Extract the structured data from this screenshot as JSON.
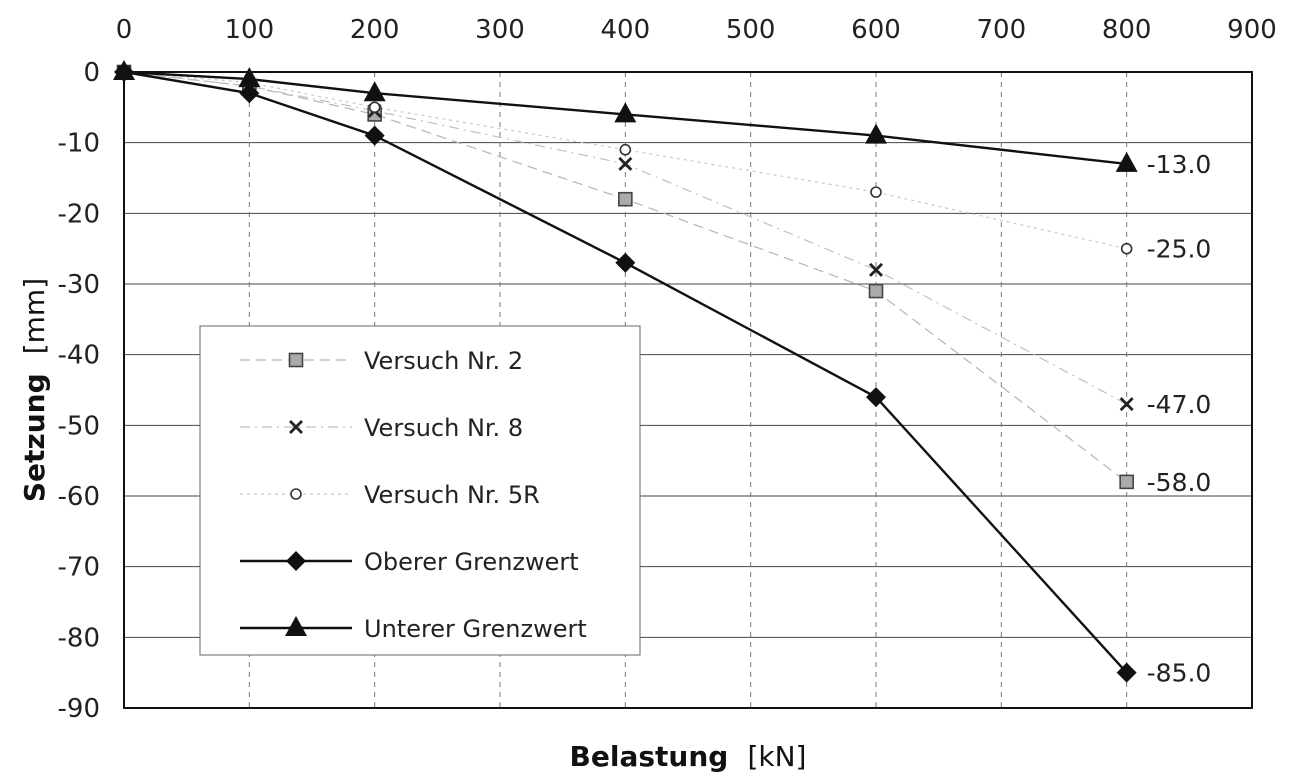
{
  "chart_data": {
    "type": "line",
    "xlabel": "Belastung",
    "xunit": "[kN]",
    "ylabel": "Setzung",
    "yunit": "[mm]",
    "xlim": [
      0,
      900
    ],
    "ylim": [
      -90,
      0
    ],
    "xticks": [
      0,
      100,
      200,
      300,
      400,
      500,
      600,
      700,
      800,
      900
    ],
    "yticks": [
      0,
      -10,
      -20,
      -30,
      -40,
      -50,
      -60,
      -70,
      -80,
      -90
    ],
    "x_axis_position": "top",
    "grid": true,
    "legend_position": "lower-left",
    "series": [
      {
        "name": "Versuch Nr. 2",
        "marker": "square",
        "line": "dashed-light",
        "x": [
          0,
          100,
          200,
          400,
          600,
          800
        ],
        "y": [
          0,
          -2,
          -6,
          -18,
          -31,
          -58
        ],
        "end_label": "-58.0"
      },
      {
        "name": "Versuch Nr. 8",
        "marker": "x",
        "line": "dashdot-light",
        "x": [
          0,
          100,
          200,
          400,
          600,
          800
        ],
        "y": [
          0,
          -2,
          -5.5,
          -13,
          -28,
          -47
        ],
        "end_label": "-47.0"
      },
      {
        "name": "Versuch Nr. 5R",
        "marker": "circle",
        "line": "dotted-light",
        "x": [
          0,
          100,
          200,
          400,
          600,
          800
        ],
        "y": [
          0,
          -1.5,
          -5,
          -11,
          -17,
          -25
        ],
        "end_label": "-25.0"
      },
      {
        "name": "Oberer Grenzwert",
        "marker": "diamond",
        "line": "solid",
        "x": [
          0,
          100,
          200,
          400,
          600,
          800
        ],
        "y": [
          0,
          -3,
          -9,
          -27,
          -46,
          -85
        ],
        "end_label": "-85.0"
      },
      {
        "name": "Unterer Grenzwert",
        "marker": "triangle",
        "line": "solid",
        "x": [
          0,
          100,
          200,
          400,
          600,
          800
        ],
        "y": [
          0,
          -1,
          -3,
          -6,
          -9,
          -13
        ],
        "end_label": "-13.0"
      }
    ]
  }
}
